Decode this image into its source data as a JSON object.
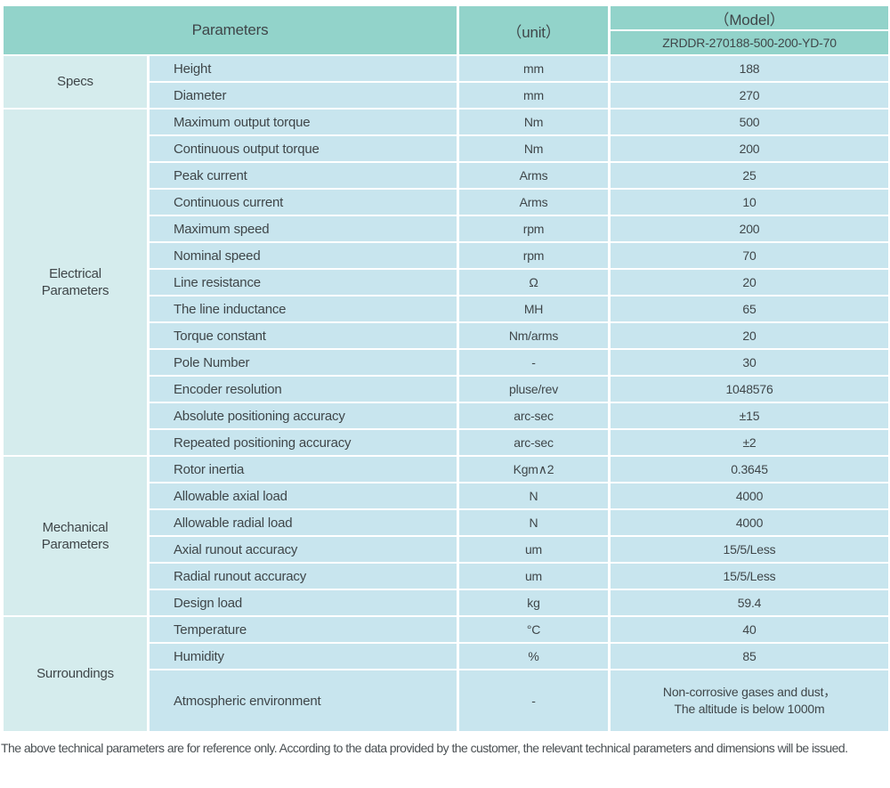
{
  "colors": {
    "header_bg": "#92d3ca",
    "cell_bg": "#c8e5ee",
    "group_bg": "#d5eced",
    "border": "#ffffff",
    "text": "#3f4649"
  },
  "table": {
    "header": {
      "parameters_label": "Parameters",
      "unit_label": "（unit）",
      "model_label": "（Model）",
      "model_value": "ZRDDR-270188-500-200-YD-70"
    },
    "groups": [
      {
        "name": "Specs",
        "rows": [
          {
            "parameter": "Height",
            "unit": "mm",
            "value": "188"
          },
          {
            "parameter": "Diameter",
            "unit": "mm",
            "value": "270"
          }
        ]
      },
      {
        "name": "Electrical\nParameters",
        "rows": [
          {
            "parameter": "Maximum output torque",
            "unit": "Nm",
            "value": "500"
          },
          {
            "parameter": "Continuous output torque",
            "unit": "Nm",
            "value": "200"
          },
          {
            "parameter": "Peak current",
            "unit": "Arms",
            "value": "25"
          },
          {
            "parameter": "Continuous current",
            "unit": "Arms",
            "value": "10"
          },
          {
            "parameter": "Maximum speed",
            "unit": "rpm",
            "value": "200"
          },
          {
            "parameter": "Nominal speed",
            "unit": "rpm",
            "value": "70"
          },
          {
            "parameter": "Line resistance",
            "unit": "Ω",
            "value": "20"
          },
          {
            "parameter": "The line inductance",
            "unit": "MH",
            "value": "65"
          },
          {
            "parameter": "Torque constant",
            "unit": "Nm/arms",
            "value": "20"
          },
          {
            "parameter": "Pole Number",
            "unit": "-",
            "value": "30"
          },
          {
            "parameter": "Encoder resolution",
            "unit": "pluse/rev",
            "value": "1048576"
          },
          {
            "parameter": "Absolute positioning accuracy",
            "unit": "arc-sec",
            "value": "±15"
          },
          {
            "parameter": "Repeated positioning accuracy",
            "unit": "arc-sec",
            "value": "±2"
          }
        ]
      },
      {
        "name": "Mechanical\nParameters",
        "rows": [
          {
            "parameter": "Rotor inertia",
            "unit": "Kgm∧2",
            "value": "0.3645"
          },
          {
            "parameter": "Allowable axial load",
            "unit": "N",
            "value": "4000"
          },
          {
            "parameter": "Allowable radial load",
            "unit": "N",
            "value": "4000"
          },
          {
            "parameter": "Axial runout accuracy",
            "unit": "um",
            "value": "15/5/Less"
          },
          {
            "parameter": "Radial runout accuracy",
            "unit": "um",
            "value": "15/5/Less"
          },
          {
            "parameter": "Design load",
            "unit": "kg",
            "value": "59.4"
          }
        ]
      },
      {
        "name": "Surroundings",
        "rows": [
          {
            "parameter": "Temperature",
            "unit": "°C",
            "value": "40"
          },
          {
            "parameter": "Humidity",
            "unit": "%",
            "value": "85"
          },
          {
            "parameter": "Atmospheric environment",
            "unit": "-",
            "value": "Non-corrosive gases and dust，\nThe altitude is below 1000m",
            "tall": true
          }
        ]
      }
    ]
  },
  "footer": {
    "note": "The above technical parameters are for reference only. According to the data provided by the customer, the relevant technical parameters and dimensions will be issued."
  }
}
